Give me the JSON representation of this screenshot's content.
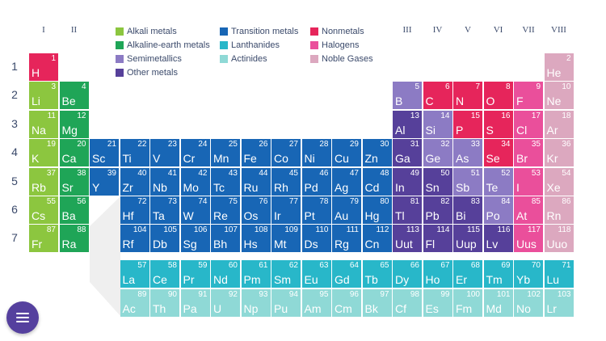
{
  "colors": {
    "alkali": "#8cc63f",
    "alkaline_earth": "#1fa557",
    "semimetal": "#8c7bc4",
    "other_metal": "#56409a",
    "transition": "#1866b5",
    "lanthanide": "#28b7c9",
    "actinide": "#8fd9d6",
    "nonmetal": "#e6255b",
    "halogen": "#ea4f9b",
    "noble": "#dca8bf",
    "label_text": "#3b4a6b",
    "connector": "#efefef",
    "menu_button": "#55409e"
  },
  "group_labels_left": [
    "I",
    "II"
  ],
  "group_labels_right": [
    "III",
    "IV",
    "V",
    "VI",
    "VII",
    "VIII"
  ],
  "period_labels": [
    "1",
    "2",
    "3",
    "4",
    "5",
    "6",
    "7"
  ],
  "legend": [
    {
      "label": "Alkali metals",
      "category": "alkali"
    },
    {
      "label": "Alkaline-earth metals",
      "category": "alkaline_earth"
    },
    {
      "label": "Semimetallics",
      "category": "semimetal"
    },
    {
      "label": "Other metals",
      "category": "other_metal"
    },
    {
      "label": "Transition metals",
      "category": "transition"
    },
    {
      "label": "Lanthanides",
      "category": "lanthanide"
    },
    {
      "label": "Actinides",
      "category": "actinide"
    },
    {
      "label": "Nonmetals",
      "category": "nonmetal"
    },
    {
      "label": "Halogens",
      "category": "halogen"
    },
    {
      "label": "Noble Gases",
      "category": "noble"
    }
  ],
  "menu_button": {
    "icon": "hamburger-menu-icon"
  },
  "elements": [
    {
      "symbol": "H",
      "number": 1,
      "period": 1,
      "group": 1,
      "category": "nonmetal"
    },
    {
      "symbol": "He",
      "number": 2,
      "period": 1,
      "group": 18,
      "category": "noble"
    },
    {
      "symbol": "Li",
      "number": 3,
      "period": 2,
      "group": 1,
      "category": "alkali"
    },
    {
      "symbol": "Be",
      "number": 4,
      "period": 2,
      "group": 2,
      "category": "alkaline_earth"
    },
    {
      "symbol": "B",
      "number": 5,
      "period": 2,
      "group": 13,
      "category": "semimetal"
    },
    {
      "symbol": "C",
      "number": 6,
      "period": 2,
      "group": 14,
      "category": "nonmetal"
    },
    {
      "symbol": "N",
      "number": 7,
      "period": 2,
      "group": 15,
      "category": "nonmetal"
    },
    {
      "symbol": "O",
      "number": 8,
      "period": 2,
      "group": 16,
      "category": "nonmetal"
    },
    {
      "symbol": "F",
      "number": 9,
      "period": 2,
      "group": 17,
      "category": "halogen"
    },
    {
      "symbol": "Ne",
      "number": 10,
      "period": 2,
      "group": 18,
      "category": "noble"
    },
    {
      "symbol": "Na",
      "number": 11,
      "period": 3,
      "group": 1,
      "category": "alkali"
    },
    {
      "symbol": "Mg",
      "number": 12,
      "period": 3,
      "group": 2,
      "category": "alkaline_earth"
    },
    {
      "symbol": "Al",
      "number": 13,
      "period": 3,
      "group": 13,
      "category": "other_metal"
    },
    {
      "symbol": "Si",
      "number": 14,
      "period": 3,
      "group": 14,
      "category": "semimetal"
    },
    {
      "symbol": "P",
      "number": 15,
      "period": 3,
      "group": 15,
      "category": "nonmetal"
    },
    {
      "symbol": "S",
      "number": 16,
      "period": 3,
      "group": 16,
      "category": "nonmetal"
    },
    {
      "symbol": "Cl",
      "number": 17,
      "period": 3,
      "group": 17,
      "category": "halogen"
    },
    {
      "symbol": "Ar",
      "number": 18,
      "period": 3,
      "group": 18,
      "category": "noble"
    },
    {
      "symbol": "K",
      "number": 19,
      "period": 4,
      "group": 1,
      "category": "alkali"
    },
    {
      "symbol": "Ca",
      "number": 20,
      "period": 4,
      "group": 2,
      "category": "alkaline_earth"
    },
    {
      "symbol": "Sc",
      "number": 21,
      "period": 4,
      "group": 3,
      "category": "transition"
    },
    {
      "symbol": "Ti",
      "number": 22,
      "period": 4,
      "group": 4,
      "category": "transition"
    },
    {
      "symbol": "V",
      "number": 23,
      "period": 4,
      "group": 5,
      "category": "transition"
    },
    {
      "symbol": "Cr",
      "number": 24,
      "period": 4,
      "group": 6,
      "category": "transition"
    },
    {
      "symbol": "Mn",
      "number": 25,
      "period": 4,
      "group": 7,
      "category": "transition"
    },
    {
      "symbol": "Fe",
      "number": 26,
      "period": 4,
      "group": 8,
      "category": "transition"
    },
    {
      "symbol": "Co",
      "number": 27,
      "period": 4,
      "group": 9,
      "category": "transition"
    },
    {
      "symbol": "Ni",
      "number": 28,
      "period": 4,
      "group": 10,
      "category": "transition"
    },
    {
      "symbol": "Cu",
      "number": 29,
      "period": 4,
      "group": 11,
      "category": "transition"
    },
    {
      "symbol": "Zn",
      "number": 30,
      "period": 4,
      "group": 12,
      "category": "transition"
    },
    {
      "symbol": "Ga",
      "number": 31,
      "period": 4,
      "group": 13,
      "category": "other_metal"
    },
    {
      "symbol": "Ge",
      "number": 32,
      "period": 4,
      "group": 14,
      "category": "semimetal"
    },
    {
      "symbol": "As",
      "number": 33,
      "period": 4,
      "group": 15,
      "category": "semimetal"
    },
    {
      "symbol": "Se",
      "number": 34,
      "period": 4,
      "group": 16,
      "category": "nonmetal"
    },
    {
      "symbol": "Br",
      "number": 35,
      "period": 4,
      "group": 17,
      "category": "halogen"
    },
    {
      "symbol": "Kr",
      "number": 36,
      "period": 4,
      "group": 18,
      "category": "noble"
    },
    {
      "symbol": "Rb",
      "number": 37,
      "period": 5,
      "group": 1,
      "category": "alkali"
    },
    {
      "symbol": "Sr",
      "number": 38,
      "period": 5,
      "group": 2,
      "category": "alkaline_earth"
    },
    {
      "symbol": "Y",
      "number": 39,
      "period": 5,
      "group": 3,
      "category": "transition"
    },
    {
      "symbol": "Zr",
      "number": 40,
      "period": 5,
      "group": 4,
      "category": "transition"
    },
    {
      "symbol": "Nb",
      "number": 41,
      "period": 5,
      "group": 5,
      "category": "transition"
    },
    {
      "symbol": "Mo",
      "number": 42,
      "period": 5,
      "group": 6,
      "category": "transition"
    },
    {
      "symbol": "Tc",
      "number": 43,
      "period": 5,
      "group": 7,
      "category": "transition"
    },
    {
      "symbol": "Ru",
      "number": 44,
      "period": 5,
      "group": 8,
      "category": "transition"
    },
    {
      "symbol": "Rh",
      "number": 45,
      "period": 5,
      "group": 9,
      "category": "transition"
    },
    {
      "symbol": "Pd",
      "number": 46,
      "period": 5,
      "group": 10,
      "category": "transition"
    },
    {
      "symbol": "Ag",
      "number": 47,
      "period": 5,
      "group": 11,
      "category": "transition"
    },
    {
      "symbol": "Cd",
      "number": 48,
      "period": 5,
      "group": 12,
      "category": "transition"
    },
    {
      "symbol": "In",
      "number": 49,
      "period": 5,
      "group": 13,
      "category": "other_metal"
    },
    {
      "symbol": "Sn",
      "number": 50,
      "period": 5,
      "group": 14,
      "category": "other_metal"
    },
    {
      "symbol": "Sb",
      "number": 51,
      "period": 5,
      "group": 15,
      "category": "semimetal"
    },
    {
      "symbol": "Te",
      "number": 52,
      "period": 5,
      "group": 16,
      "category": "semimetal"
    },
    {
      "symbol": "I",
      "number": 53,
      "period": 5,
      "group": 17,
      "category": "halogen"
    },
    {
      "symbol": "Xe",
      "number": 54,
      "period": 5,
      "group": 18,
      "category": "noble"
    },
    {
      "symbol": "Cs",
      "number": 55,
      "period": 6,
      "group": 1,
      "category": "alkali"
    },
    {
      "symbol": "Ba",
      "number": 56,
      "period": 6,
      "group": 2,
      "category": "alkaline_earth"
    },
    {
      "symbol": "Hf",
      "number": 72,
      "period": 6,
      "group": 4,
      "category": "transition"
    },
    {
      "symbol": "Ta",
      "number": 73,
      "period": 6,
      "group": 5,
      "category": "transition"
    },
    {
      "symbol": "W",
      "number": 74,
      "period": 6,
      "group": 6,
      "category": "transition"
    },
    {
      "symbol": "Re",
      "number": 75,
      "period": 6,
      "group": 7,
      "category": "transition"
    },
    {
      "symbol": "Os",
      "number": 76,
      "period": 6,
      "group": 8,
      "category": "transition"
    },
    {
      "symbol": "Ir",
      "number": 77,
      "period": 6,
      "group": 9,
      "category": "transition"
    },
    {
      "symbol": "Pt",
      "number": 78,
      "period": 6,
      "group": 10,
      "category": "transition"
    },
    {
      "symbol": "Au",
      "number": 79,
      "period": 6,
      "group": 11,
      "category": "transition"
    },
    {
      "symbol": "Hg",
      "number": 80,
      "period": 6,
      "group": 12,
      "category": "transition"
    },
    {
      "symbol": "Tl",
      "number": 81,
      "period": 6,
      "group": 13,
      "category": "other_metal"
    },
    {
      "symbol": "Pb",
      "number": 82,
      "period": 6,
      "group": 14,
      "category": "other_metal"
    },
    {
      "symbol": "Bi",
      "number": 83,
      "period": 6,
      "group": 15,
      "category": "other_metal"
    },
    {
      "symbol": "Po",
      "number": 84,
      "period": 6,
      "group": 16,
      "category": "semimetal"
    },
    {
      "symbol": "At",
      "number": 85,
      "period": 6,
      "group": 17,
      "category": "halogen"
    },
    {
      "symbol": "Rn",
      "number": 86,
      "period": 6,
      "group": 18,
      "category": "noble"
    },
    {
      "symbol": "Fr",
      "number": 87,
      "period": 7,
      "group": 1,
      "category": "alkali"
    },
    {
      "symbol": "Ra",
      "number": 88,
      "period": 7,
      "group": 2,
      "category": "alkaline_earth"
    },
    {
      "symbol": "Rf",
      "number": 104,
      "period": 7,
      "group": 4,
      "category": "transition"
    },
    {
      "symbol": "Db",
      "number": 105,
      "period": 7,
      "group": 5,
      "category": "transition"
    },
    {
      "symbol": "Sg",
      "number": 106,
      "period": 7,
      "group": 6,
      "category": "transition"
    },
    {
      "symbol": "Bh",
      "number": 107,
      "period": 7,
      "group": 7,
      "category": "transition"
    },
    {
      "symbol": "Hs",
      "number": 108,
      "period": 7,
      "group": 8,
      "category": "transition"
    },
    {
      "symbol": "Mt",
      "number": 109,
      "period": 7,
      "group": 9,
      "category": "transition"
    },
    {
      "symbol": "Ds",
      "number": 110,
      "period": 7,
      "group": 10,
      "category": "transition"
    },
    {
      "symbol": "Rg",
      "number": 111,
      "period": 7,
      "group": 11,
      "category": "transition"
    },
    {
      "symbol": "Cn",
      "number": 112,
      "period": 7,
      "group": 12,
      "category": "transition"
    },
    {
      "symbol": "Uut",
      "number": 113,
      "period": 7,
      "group": 13,
      "category": "other_metal"
    },
    {
      "symbol": "Fl",
      "number": 114,
      "period": 7,
      "group": 14,
      "category": "other_metal"
    },
    {
      "symbol": "Uup",
      "number": 115,
      "period": 7,
      "group": 15,
      "category": "other_metal"
    },
    {
      "symbol": "Lv",
      "number": 116,
      "period": 7,
      "group": 16,
      "category": "other_metal"
    },
    {
      "symbol": "Uus",
      "number": 117,
      "period": 7,
      "group": 17,
      "category": "halogen"
    },
    {
      "symbol": "Uuo",
      "number": 118,
      "period": 7,
      "group": 18,
      "category": "noble"
    },
    {
      "symbol": "La",
      "number": 57,
      "period": 8,
      "group": 4,
      "category": "lanthanide"
    },
    {
      "symbol": "Ce",
      "number": 58,
      "period": 8,
      "group": 5,
      "category": "lanthanide"
    },
    {
      "symbol": "Pr",
      "number": 59,
      "period": 8,
      "group": 6,
      "category": "lanthanide"
    },
    {
      "symbol": "Nd",
      "number": 60,
      "period": 8,
      "group": 7,
      "category": "lanthanide"
    },
    {
      "symbol": "Pm",
      "number": 61,
      "period": 8,
      "group": 8,
      "category": "lanthanide"
    },
    {
      "symbol": "Sm",
      "number": 62,
      "period": 8,
      "group": 9,
      "category": "lanthanide"
    },
    {
      "symbol": "Eu",
      "number": 63,
      "period": 8,
      "group": 10,
      "category": "lanthanide"
    },
    {
      "symbol": "Gd",
      "number": 64,
      "period": 8,
      "group": 11,
      "category": "lanthanide"
    },
    {
      "symbol": "Tb",
      "number": 65,
      "period": 8,
      "group": 12,
      "category": "lanthanide"
    },
    {
      "symbol": "Dy",
      "number": 66,
      "period": 8,
      "group": 13,
      "category": "lanthanide"
    },
    {
      "symbol": "Ho",
      "number": 67,
      "period": 8,
      "group": 14,
      "category": "lanthanide"
    },
    {
      "symbol": "Er",
      "number": 68,
      "period": 8,
      "group": 15,
      "category": "lanthanide"
    },
    {
      "symbol": "Tm",
      "number": 69,
      "period": 8,
      "group": 16,
      "category": "lanthanide"
    },
    {
      "symbol": "Yb",
      "number": 70,
      "period": 8,
      "group": 17,
      "category": "lanthanide"
    },
    {
      "symbol": "Lu",
      "number": 71,
      "period": 8,
      "group": 18,
      "category": "lanthanide"
    },
    {
      "symbol": "Ac",
      "number": 89,
      "period": 9,
      "group": 4,
      "category": "actinide"
    },
    {
      "symbol": "Th",
      "number": 90,
      "period": 9,
      "group": 5,
      "category": "actinide"
    },
    {
      "symbol": "Pa",
      "number": 91,
      "period": 9,
      "group": 6,
      "category": "actinide"
    },
    {
      "symbol": "U",
      "number": 92,
      "period": 9,
      "group": 7,
      "category": "actinide"
    },
    {
      "symbol": "Np",
      "number": 93,
      "period": 9,
      "group": 8,
      "category": "actinide"
    },
    {
      "symbol": "Pu",
      "number": 94,
      "period": 9,
      "group": 9,
      "category": "actinide"
    },
    {
      "symbol": "Am",
      "number": 95,
      "period": 9,
      "group": 10,
      "category": "actinide"
    },
    {
      "symbol": "Cm",
      "number": 96,
      "period": 9,
      "group": 11,
      "category": "actinide"
    },
    {
      "symbol": "Bk",
      "number": 97,
      "period": 9,
      "group": 12,
      "category": "actinide"
    },
    {
      "symbol": "Cf",
      "number": 98,
      "period": 9,
      "group": 13,
      "category": "actinide"
    },
    {
      "symbol": "Es",
      "number": 99,
      "period": 9,
      "group": 14,
      "category": "actinide"
    },
    {
      "symbol": "Fm",
      "number": 100,
      "period": 9,
      "group": 15,
      "category": "actinide"
    },
    {
      "symbol": "Md",
      "number": 101,
      "period": 9,
      "group": 16,
      "category": "actinide"
    },
    {
      "symbol": "No",
      "number": 102,
      "period": 9,
      "group": 17,
      "category": "actinide"
    },
    {
      "symbol": "Lr",
      "number": 103,
      "period": 9,
      "group": 18,
      "category": "actinide"
    }
  ]
}
